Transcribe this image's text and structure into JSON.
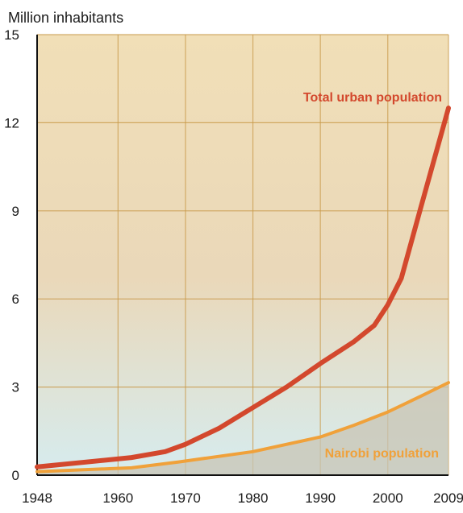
{
  "chart_data": {
    "type": "line",
    "ylabel": "Million inhabitants",
    "xlim": [
      1948,
      2009
    ],
    "ylim": [
      0,
      15
    ],
    "x_ticks": [
      "1948",
      "1960",
      "1970",
      "1980",
      "1990",
      "2000",
      "2009"
    ],
    "y_ticks": [
      "0",
      "3",
      "6",
      "9",
      "12",
      "15"
    ],
    "grid": true,
    "background": {
      "top": "#f1dfb7",
      "bottom": "#d6ecef"
    },
    "series": [
      {
        "name": "Total urban population",
        "color": "#d3482d",
        "x": [
          1948,
          1962,
          1967,
          1970,
          1975,
          1980,
          1985,
          1990,
          1995,
          1998,
          2000,
          2002,
          2005,
          2009
        ],
        "y": [
          0.28,
          0.6,
          0.8,
          1.05,
          1.6,
          2.3,
          3.0,
          3.8,
          4.55,
          5.1,
          5.8,
          6.7,
          9.2,
          12.5
        ]
      },
      {
        "name": "Nairobi population",
        "color": "#f0a13a",
        "fill": "#c8c4b4",
        "x": [
          1948,
          1962,
          1969,
          1980,
          1990,
          1995,
          2000,
          2005,
          2009
        ],
        "y": [
          0.12,
          0.25,
          0.45,
          0.8,
          1.3,
          1.7,
          2.15,
          2.7,
          3.15
        ]
      }
    ]
  }
}
